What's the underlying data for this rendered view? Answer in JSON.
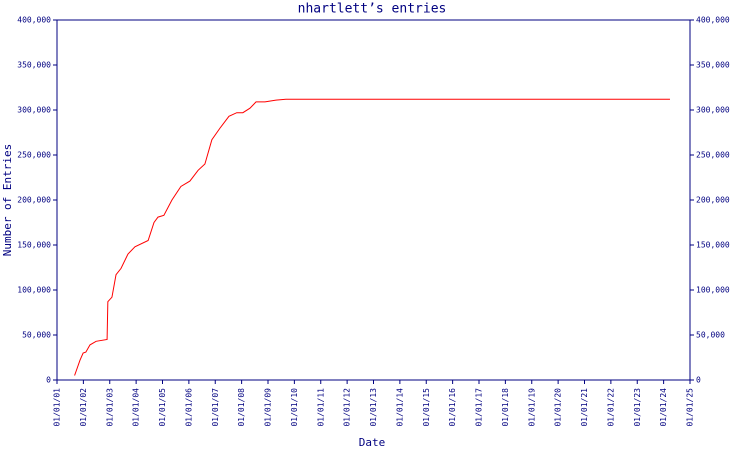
{
  "chart_data": {
    "type": "line",
    "title": "nhartlett’s entries",
    "xlabel": "Date",
    "ylabel": "Number of Entries",
    "x": [
      "09/01/01",
      "11/15/01",
      "12/28/01",
      "02/05/02",
      "04/01/02",
      "06/25/02",
      "11/25/02",
      "12/05/02",
      "02/01/03",
      "03/27/03",
      "06/05/03",
      "09/10/03",
      "12/15/03",
      "06/15/04",
      "09/05/04",
      "10/30/04",
      "01/20/05",
      "05/10/05",
      "09/12/05",
      "01/15/06",
      "05/07/06",
      "08/10/06",
      "11/15/06",
      "03/07/07",
      "07/08/07",
      "10/25/07",
      "01/18/08",
      "04/25/08",
      "07/18/08",
      "11/20/08",
      "04/20/09",
      "09/05/09",
      "03/28/24"
    ],
    "series": [
      {
        "name": "nhartlett",
        "color": "#ff0000",
        "values": [
          5000,
          22000,
          30000,
          31000,
          39000,
          43000,
          45000,
          87000,
          92000,
          117000,
          124000,
          140000,
          148000,
          155000,
          175000,
          181000,
          183000,
          200000,
          215000,
          221000,
          233000,
          240000,
          267000,
          280000,
          293000,
          297000,
          297000,
          302000,
          309000,
          309000,
          311000,
          312000,
          312000
        ]
      }
    ],
    "xlim": [
      "01/01/01",
      "01/01/25"
    ],
    "xticks": [
      "01/01/01",
      "01/01/02",
      "01/01/03",
      "01/01/04",
      "01/01/05",
      "01/01/06",
      "01/01/07",
      "01/01/08",
      "01/01/09",
      "01/01/10",
      "01/01/11",
      "01/01/12",
      "01/01/13",
      "01/01/14",
      "01/01/15",
      "01/01/16",
      "01/01/17",
      "01/01/18",
      "01/01/19",
      "01/01/20",
      "01/01/21",
      "01/01/22",
      "01/01/23",
      "01/01/24",
      "01/01/25"
    ],
    "ylim": [
      0,
      400000
    ],
    "yticks": [
      0,
      {
        "value": 50000,
        "label": "50,000"
      },
      {
        "value": 100000,
        "label": "100,000"
      },
      {
        "value": 150000,
        "label": "150,000"
      },
      {
        "value": 200000,
        "label": "200,000"
      },
      {
        "value": 250000,
        "label": "250,000"
      },
      {
        "value": 300000,
        "label": "300,000"
      },
      {
        "value": 350000,
        "label": "350,000"
      },
      {
        "value": 400000,
        "label": "400,000"
      }
    ],
    "axis_color": "#000080"
  }
}
